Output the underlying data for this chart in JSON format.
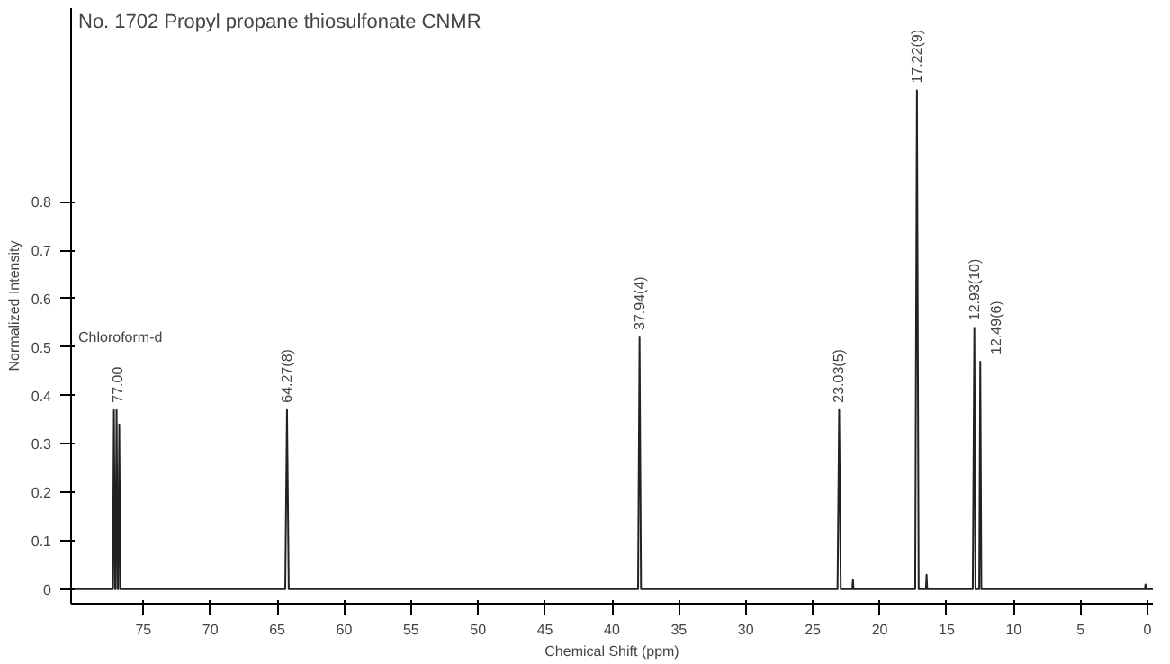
{
  "chart_data": {
    "type": "line",
    "title": "No. 1702 Propyl propane thiosulfonate CNMR",
    "xlabel": "Chemical Shift (ppm)",
    "ylabel": "Normalized Intensity",
    "series": [
      {
        "color": "#222222",
        "x": [
          80.4,
          77.4,
          77.28,
          77.2,
          77.12,
          77.08,
          77.0,
          76.92,
          76.88,
          76.8,
          76.72,
          76.6,
          64.4,
          64.27,
          64.14,
          38.05,
          37.94,
          37.83,
          23.15,
          23.03,
          22.91,
          22.05,
          22.0,
          21.95,
          17.35,
          17.22,
          17.09,
          16.55,
          16.5,
          16.45,
          13.05,
          12.93,
          12.85,
          12.57,
          12.49,
          12.41,
          0.2,
          0.15,
          0.1,
          -0.4
        ],
        "values": [
          0,
          0,
          0,
          0.37,
          0,
          0,
          0.37,
          0,
          0,
          0.34,
          0,
          0,
          0,
          0.37,
          0,
          0,
          0.52,
          0,
          0,
          0.37,
          0,
          0,
          0.02,
          0,
          0,
          1.03,
          0,
          0,
          0.03,
          0,
          0,
          0.54,
          0,
          0,
          0.47,
          0,
          0,
          0.01,
          0,
          0
        ]
      }
    ],
    "xlim": [
      80.4,
      -0.4
    ],
    "ylim": [
      -0.03,
      1.2
    ],
    "xticks": [
      75,
      70,
      65,
      60,
      55,
      50,
      45,
      40,
      35,
      30,
      25,
      20,
      15,
      10,
      5,
      0
    ],
    "yticks": [
      0,
      0.1,
      0.2,
      0.3,
      0.4,
      0.5,
      0.6,
      0.7,
      0.8
    ],
    "annotations": [
      {
        "text": "77.00",
        "x": 77.0,
        "y": 0.37
      },
      {
        "text": "64.27(8)",
        "x": 64.27,
        "y": 0.37
      },
      {
        "text": "37.94(4)",
        "x": 37.94,
        "y": 0.52
      },
      {
        "text": "23.03(5)",
        "x": 23.03,
        "y": 0.37
      },
      {
        "text": "17.22(9)",
        "x": 17.22,
        "y": 1.03
      },
      {
        "text": "12.93(10)",
        "x": 12.93,
        "y": 0.54
      },
      {
        "text": "12.49(6)",
        "x": 12.49,
        "y": 0.47
      },
      "Chloroform-d"
    ],
    "grid": false,
    "marker": "none",
    "line_style": "solid"
  }
}
